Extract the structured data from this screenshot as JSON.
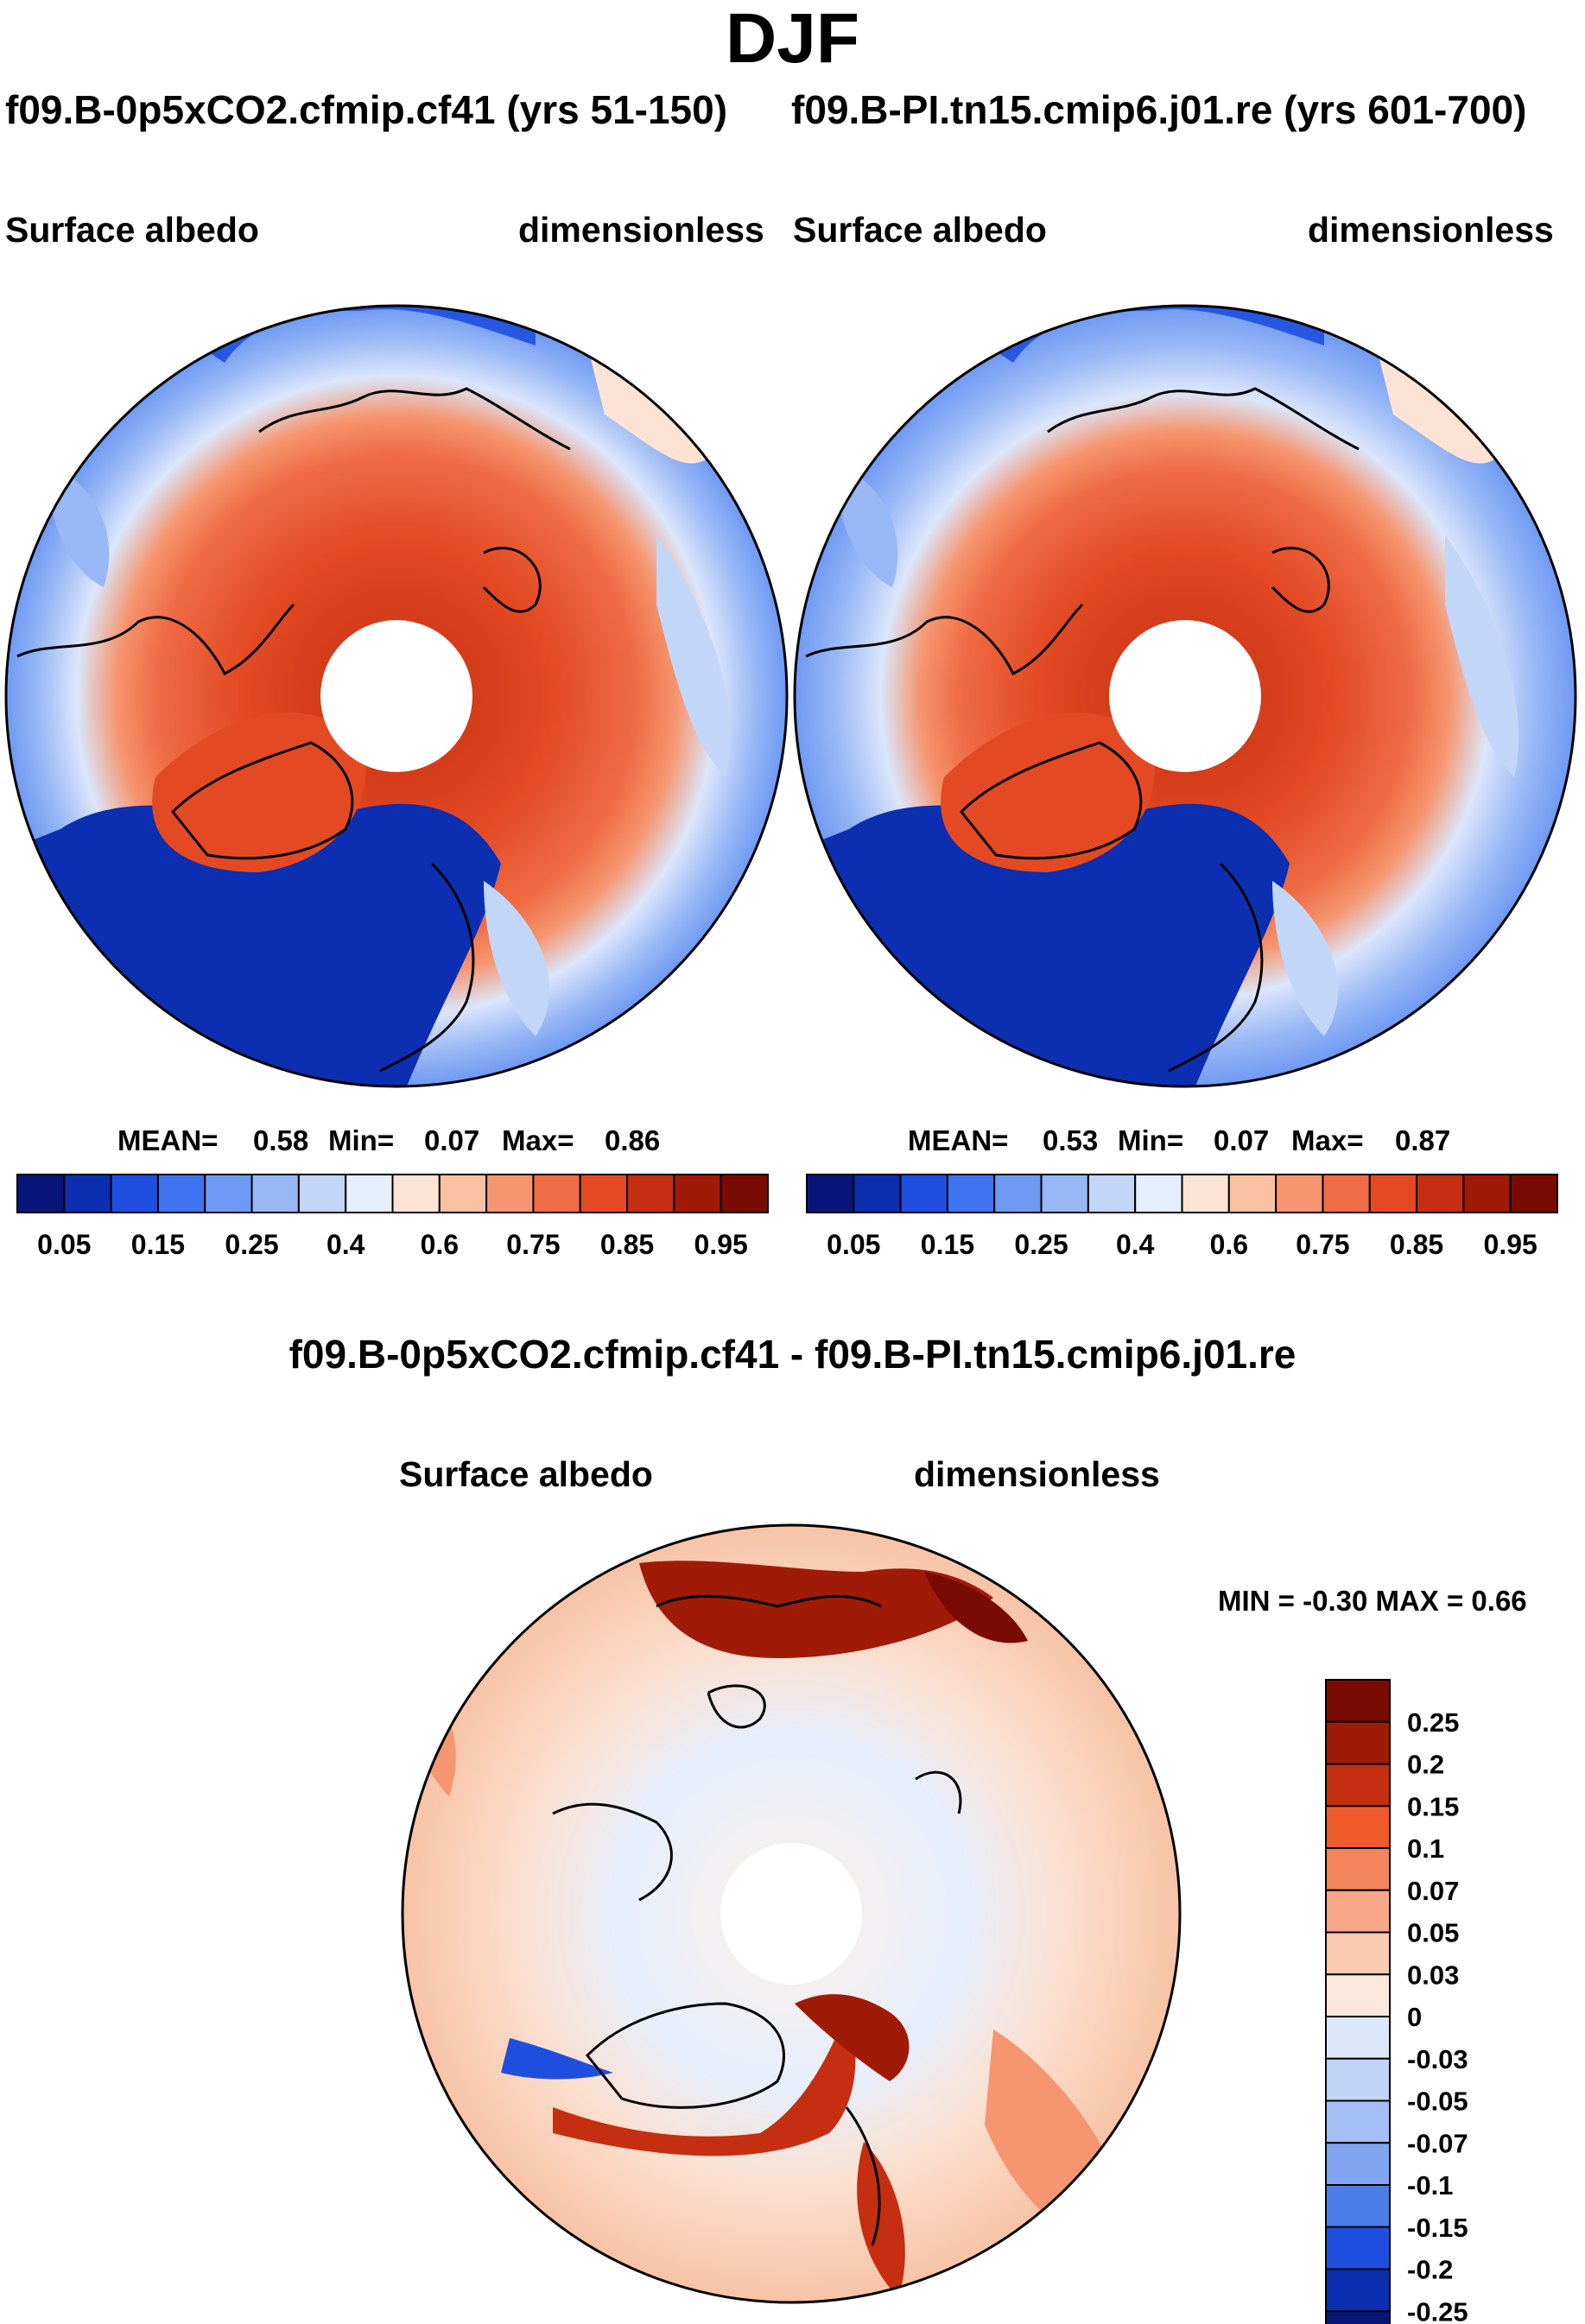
{
  "title": "DJF",
  "panels": [
    {
      "header": "f09.B-0p5xCO2.cfmip.cf41 (yrs 51-150)",
      "variable": "Surface albedo",
      "units": "dimensionless",
      "stats": {
        "mean_label": "MEAN=",
        "mean": "0.58",
        "min_label": "Min=",
        "min": "0.07",
        "max_label": "Max=",
        "max": "0.86"
      }
    },
    {
      "header": "f09.B-PI.tn15.cmip6.j01.re (yrs 601-700)",
      "variable": "Surface albedo",
      "units": "dimensionless",
      "stats": {
        "mean_label": "MEAN=",
        "mean": "0.53",
        "min_label": "Min=",
        "min": "0.07",
        "max_label": "Max=",
        "max": "0.87"
      }
    }
  ],
  "diff": {
    "title": "f09.B-0p5xCO2.cfmip.cf41 - f09.B-PI.tn15.cmip6.j01.re",
    "variable": "Surface albedo",
    "units": "dimensionless",
    "minmax": "MIN =  -0.30 MAX =   0.66"
  },
  "chart_data": [
    {
      "type": "heatmap",
      "projection": "north-polar-stereographic",
      "title": "Surface albedo",
      "units": "dimensionless",
      "season": "DJF",
      "case": "f09.B-0p5xCO2.cfmip.cf41 (yrs 51-150)",
      "mean": 0.58,
      "min": 0.07,
      "max": 0.86,
      "colorbar_ticks": [
        "0.05",
        "0.15",
        "0.25",
        "0.4",
        "0.6",
        "0.75",
        "0.85",
        "0.95"
      ],
      "levels": [
        0.05,
        0.1,
        0.15,
        0.2,
        0.25,
        0.3,
        0.4,
        0.5,
        0.6,
        0.7,
        0.75,
        0.8,
        0.85,
        0.9,
        0.95
      ],
      "colors": [
        "#08167a",
        "#0b2fb0",
        "#1f4fe0",
        "#3e74f0",
        "#6f9af3",
        "#98b7f5",
        "#c2d6f8",
        "#e5eefc",
        "#fde3d3",
        "#fbc1a3",
        "#f59670",
        "#ef6c45",
        "#e34a24",
        "#c52e10",
        "#a01a08",
        "#7a0b03"
      ]
    },
    {
      "type": "heatmap",
      "projection": "north-polar-stereographic",
      "title": "Surface albedo",
      "units": "dimensionless",
      "season": "DJF",
      "case": "f09.B-PI.tn15.cmip6.j01.re (yrs 601-700)",
      "mean": 0.53,
      "min": 0.07,
      "max": 0.87,
      "colorbar_ticks": [
        "0.05",
        "0.15",
        "0.25",
        "0.4",
        "0.6",
        "0.75",
        "0.85",
        "0.95"
      ],
      "levels": [
        0.05,
        0.1,
        0.15,
        0.2,
        0.25,
        0.3,
        0.4,
        0.5,
        0.6,
        0.7,
        0.75,
        0.8,
        0.85,
        0.9,
        0.95
      ],
      "colors": [
        "#08167a",
        "#0b2fb0",
        "#1f4fe0",
        "#3e74f0",
        "#6f9af3",
        "#98b7f5",
        "#c2d6f8",
        "#e5eefc",
        "#fde3d3",
        "#fbc1a3",
        "#f59670",
        "#ef6c45",
        "#e34a24",
        "#c52e10",
        "#a01a08",
        "#7a0b03"
      ]
    },
    {
      "type": "heatmap",
      "projection": "north-polar-stereographic",
      "title": "f09.B-0p5xCO2.cfmip.cf41 - f09.B-PI.tn15.cmip6.j01.re",
      "subtitle": "Surface albedo",
      "units": "dimensionless",
      "min": -0.3,
      "max": 0.66,
      "colorbar_ticks": [
        "0.25",
        "0.2",
        "0.15",
        "0.1",
        "0.07",
        "0.05",
        "0.03",
        "0",
        "-0.03",
        "-0.05",
        "-0.07",
        "-0.1",
        "-0.15",
        "-0.2",
        "-0.25"
      ],
      "colors": [
        "#7a0b03",
        "#a01a08",
        "#c52e10",
        "#ef5a2a",
        "#f4845a",
        "#f8a888",
        "#fbcab0",
        "#fde8dc",
        "#dbe8fb",
        "#c0d4f6",
        "#a3bff4",
        "#7fa4f0",
        "#4d7de6",
        "#1f4fe0",
        "#0b2fb0",
        "#08167a"
      ]
    }
  ]
}
